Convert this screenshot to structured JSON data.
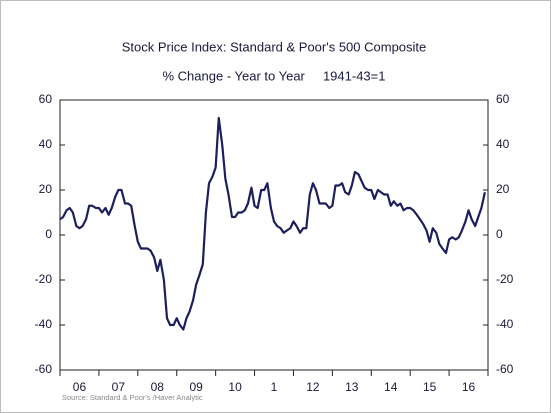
{
  "chart_data": {
    "type": "line",
    "title": "Stock Price Index: Standard & Poor's 500 Composite",
    "subtitle": "% Change - Year to Year     1941-43=1",
    "source": "Source:  Standard & Poor's /Haver Analytic",
    "xlim": [
      2006,
      2017
    ],
    "xticks": [
      {
        "value": 2006.5,
        "label": "06"
      },
      {
        "value": 2007.5,
        "label": "07"
      },
      {
        "value": 2008.5,
        "label": "08"
      },
      {
        "value": 2009.5,
        "label": "09"
      },
      {
        "value": 2010.5,
        "label": "10"
      },
      {
        "value": 2011.5,
        "label": "1"
      },
      {
        "value": 2012.5,
        "label": "12"
      },
      {
        "value": 2013.5,
        "label": "13"
      },
      {
        "value": 2014.5,
        "label": "14"
      },
      {
        "value": 2015.5,
        "label": "15"
      },
      {
        "value": 2016.5,
        "label": "16"
      }
    ],
    "ylim": [
      -60,
      60
    ],
    "yticks": [
      60,
      40,
      20,
      0,
      -20,
      -40,
      -60
    ],
    "y2lim": [
      -60,
      60
    ],
    "y2ticks": [
      60,
      40,
      20,
      0,
      -20,
      -40,
      -60
    ],
    "grid": false,
    "x": [
      2006.0,
      2006.08,
      2006.17,
      2006.25,
      2006.33,
      2006.42,
      2006.5,
      2006.58,
      2006.67,
      2006.75,
      2006.83,
      2006.92,
      2007.0,
      2007.08,
      2007.17,
      2007.25,
      2007.33,
      2007.42,
      2007.5,
      2007.58,
      2007.67,
      2007.75,
      2007.83,
      2007.92,
      2008.0,
      2008.08,
      2008.17,
      2008.25,
      2008.33,
      2008.42,
      2008.5,
      2008.58,
      2008.67,
      2008.75,
      2008.83,
      2008.92,
      2009.0,
      2009.08,
      2009.17,
      2009.25,
      2009.33,
      2009.42,
      2009.5,
      2009.58,
      2009.67,
      2009.75,
      2009.83,
      2009.92,
      2010.0,
      2010.08,
      2010.17,
      2010.25,
      2010.33,
      2010.42,
      2010.5,
      2010.58,
      2010.67,
      2010.75,
      2010.83,
      2010.92,
      2011.0,
      2011.08,
      2011.17,
      2011.25,
      2011.33,
      2011.42,
      2011.5,
      2011.58,
      2011.67,
      2011.75,
      2011.83,
      2011.92,
      2012.0,
      2012.08,
      2012.17,
      2012.25,
      2012.33,
      2012.42,
      2012.5,
      2012.58,
      2012.67,
      2012.75,
      2012.83,
      2012.92,
      2013.0,
      2013.08,
      2013.17,
      2013.25,
      2013.33,
      2013.42,
      2013.5,
      2013.58,
      2013.67,
      2013.75,
      2013.83,
      2013.92,
      2014.0,
      2014.08,
      2014.17,
      2014.25,
      2014.33,
      2014.42,
      2014.5,
      2014.58,
      2014.67,
      2014.75,
      2014.83,
      2014.92,
      2015.0,
      2015.08,
      2015.17,
      2015.25,
      2015.33,
      2015.42,
      2015.5,
      2015.58,
      2015.67,
      2015.75,
      2015.83,
      2015.92,
      2016.0,
      2016.08,
      2016.17,
      2016.25,
      2016.33,
      2016.42,
      2016.5,
      2016.58,
      2016.67,
      2016.75,
      2016.83,
      2016.92
    ],
    "series": [
      {
        "name": "S&P 500",
        "color": "#1c1f5c",
        "values": [
          7,
          8,
          11,
          12,
          10,
          4,
          3,
          4,
          7,
          13,
          13,
          12,
          12,
          10,
          12,
          9,
          12,
          17,
          20,
          20,
          14,
          14,
          13,
          4,
          -3,
          -6,
          -6,
          -6,
          -7,
          -10,
          -16,
          -11,
          -20,
          -37,
          -40,
          -40,
          -37,
          -40,
          -42,
          -37,
          -34,
          -29,
          -22,
          -18,
          -13,
          10,
          23,
          26,
          30,
          52,
          40,
          25,
          18,
          8,
          8,
          10,
          10,
          11,
          14,
          21,
          13,
          12,
          20,
          20,
          23,
          12,
          6,
          4,
          3,
          1,
          2,
          3,
          6,
          4,
          1,
          3,
          3,
          18,
          23,
          20,
          14,
          14,
          14,
          12,
          13,
          22,
          22,
          23,
          19,
          18,
          22,
          28,
          27,
          24,
          21,
          20,
          20,
          16,
          20,
          19,
          18,
          18,
          13,
          15,
          13,
          14,
          11,
          12,
          12,
          11,
          9,
          7,
          5,
          2,
          -3,
          3,
          1,
          -4,
          -6,
          -8,
          -2,
          -1,
          -2,
          -1,
          2,
          6,
          11,
          7,
          4,
          8,
          12,
          19
        ]
      }
    ]
  }
}
